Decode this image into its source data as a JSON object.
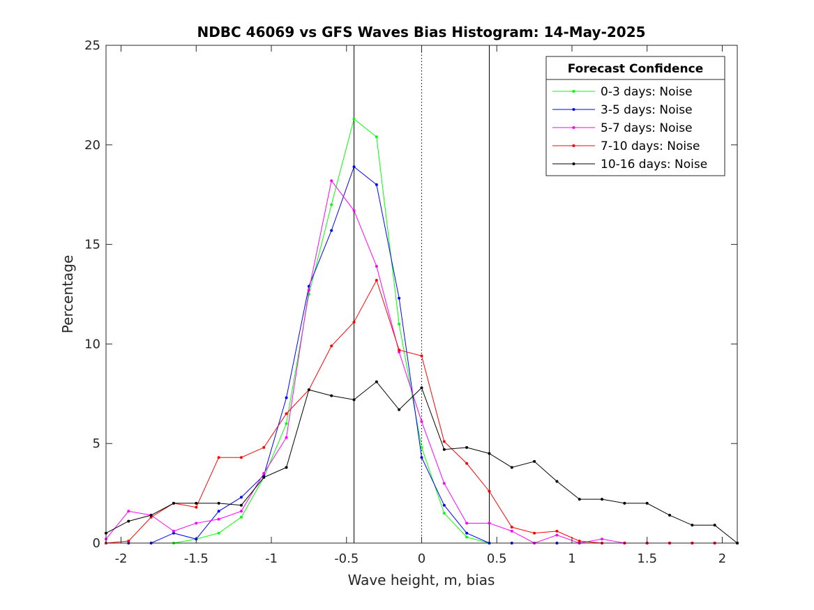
{
  "chart_data": {
    "type": "line",
    "title": "NDBC 46069 vs GFS Waves Bias Histogram: 14-May-2025",
    "xlabel": "Wave height, m, bias",
    "ylabel": "Percentage",
    "xlim": [
      -2.1,
      2.1
    ],
    "ylim": [
      0,
      25
    ],
    "xticks": [
      -2,
      -1.5,
      -1,
      -0.5,
      0,
      0.5,
      1,
      1.5,
      2
    ],
    "xtick_labels": [
      "-2",
      "-1.5",
      "-1",
      "-0.5",
      "0",
      "0.5",
      "1",
      "1.5",
      "2"
    ],
    "yticks": [
      0,
      5,
      10,
      15,
      20,
      25
    ],
    "ytick_labels": [
      "0",
      "5",
      "10",
      "15",
      "20",
      "25"
    ],
    "vertical_lines": [
      {
        "x": -0.45,
        "style": "solid",
        "color": "#000000"
      },
      {
        "x": 0.45,
        "style": "solid",
        "color": "#000000"
      },
      {
        "x": 0,
        "style": "dotted",
        "color": "#000000"
      }
    ],
    "legend": {
      "title": "Forecast Confidence",
      "position": "top-right"
    },
    "x": [
      -2.1,
      -1.95,
      -1.8,
      -1.65,
      -1.5,
      -1.35,
      -1.2,
      -1.05,
      -0.9,
      -0.75,
      -0.6,
      -0.45,
      -0.3,
      -0.15,
      0,
      0.15,
      0.3,
      0.45,
      0.6,
      0.75,
      0.9,
      1.05,
      1.2,
      1.35,
      1.5,
      1.65,
      1.8,
      1.95,
      2.1
    ],
    "series": [
      {
        "name": "0-3 days: Noise",
        "color": "#00ff00",
        "values": [
          0,
          0,
          0,
          0,
          0.2,
          0.5,
          1.3,
          3.3,
          6.0,
          12.5,
          17.0,
          21.3,
          20.4,
          11.0,
          4.8,
          1.5,
          0.3,
          0,
          0,
          0,
          0,
          0,
          0,
          0,
          0,
          0,
          0,
          0,
          0
        ]
      },
      {
        "name": "3-5 days: Noise",
        "color": "#0000ff",
        "values": [
          0,
          0,
          0,
          0.5,
          0.2,
          1.6,
          2.3,
          3.4,
          7.3,
          12.9,
          15.7,
          18.9,
          18.0,
          12.3,
          4.3,
          1.9,
          0.5,
          0,
          0,
          0,
          0,
          0,
          0,
          0,
          0,
          0,
          0,
          0,
          0
        ]
      },
      {
        "name": "5-7 days: Noise",
        "color": "#ff00ff",
        "values": [
          0.2,
          1.6,
          1.4,
          0.6,
          1.0,
          1.2,
          1.6,
          3.5,
          5.3,
          12.7,
          18.2,
          16.7,
          13.9,
          9.6,
          6.1,
          3.0,
          1.0,
          1.0,
          0.6,
          0,
          0.4,
          0,
          0.2,
          0,
          0,
          0,
          0,
          0,
          0
        ]
      },
      {
        "name": "7-10 days: Noise",
        "color": "#ff0000",
        "values": [
          0,
          0.1,
          1.3,
          2.0,
          1.8,
          4.3,
          4.3,
          4.8,
          6.5,
          7.7,
          9.9,
          11.1,
          13.2,
          9.7,
          9.4,
          5.1,
          4.0,
          2.6,
          0.8,
          0.5,
          0.6,
          0.1,
          0,
          0,
          0,
          0,
          0,
          0,
          0
        ]
      },
      {
        "name": "10-16 days: Noise",
        "color": "#000000",
        "values": [
          0.5,
          1.1,
          1.4,
          2.0,
          2.0,
          2.0,
          1.9,
          3.3,
          3.8,
          7.7,
          7.4,
          7.2,
          8.1,
          6.7,
          7.8,
          4.7,
          4.8,
          4.5,
          3.8,
          4.1,
          3.1,
          2.2,
          2.2,
          2.0,
          2.0,
          1.4,
          0.9,
          0.9,
          0
        ]
      }
    ]
  }
}
